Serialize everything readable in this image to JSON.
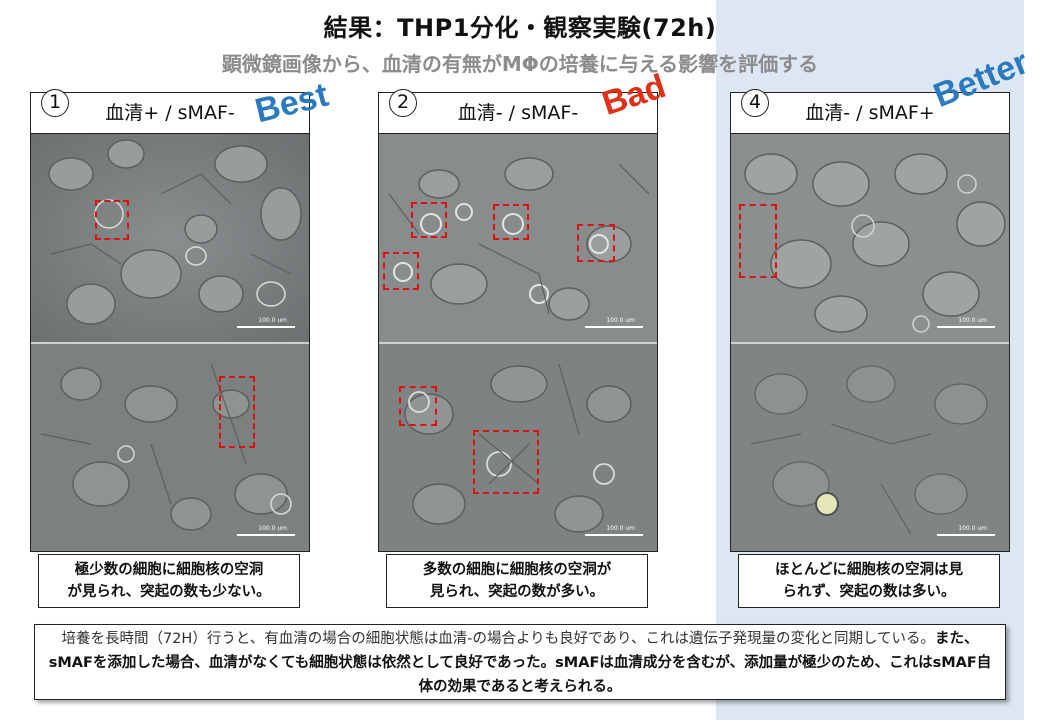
{
  "title": "結果：THP1分化・観察実験(72h)",
  "subtitle": "顕微鏡画像から、血清の有無がMΦの培養に与える影響を評価する",
  "panels": [
    {
      "number": "1",
      "label": "血清+ / sMAF-",
      "tag": "Best",
      "caption_line1": "極少数の細胞に細胞核の空洞",
      "caption_line2": "が見られ、突起の数も少ない。"
    },
    {
      "number": "2",
      "label": "血清- / sMAF-",
      "tag": "Bad",
      "caption_line1": "多数の細胞に細胞核の空洞が",
      "caption_line2": "見られ、突起の数が多い。"
    },
    {
      "number": "4",
      "label": "血清- / sMAF+",
      "tag": "Better",
      "caption_line1": "ほとんどに細胞核の空洞は見",
      "caption_line2": "られず、突起の数は多い。"
    }
  ],
  "scale_text": "100.0 um",
  "conclusion": {
    "part1": "培養を長時間（72H）行うと、有血清の場合の細胞状態は血清-の場合よりも良好であり、これは遺伝子発現量の変化と同期している。",
    "part2": "また、sMAFを添加した場合、血清がなくても細胞状態は依然として良好であった。sMAFは血清成分を含むが、添加量が極少のため、これはsMAF自体の効果であると考えられる。"
  },
  "colors": {
    "marker": "#e01010",
    "tag_blue": "#2b7ac0",
    "tag_red": "#e0301a",
    "band": "#dde7f3"
  }
}
